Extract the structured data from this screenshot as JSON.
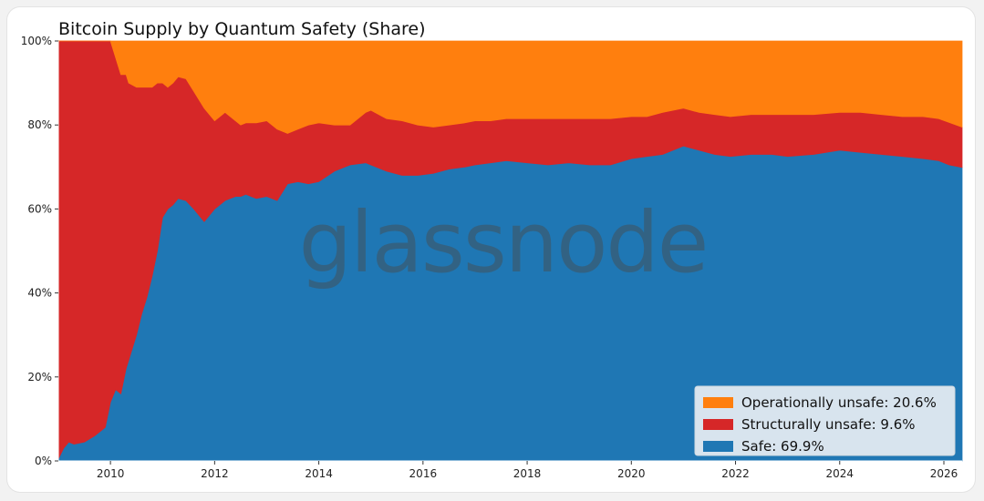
{
  "chart_data": {
    "type": "area",
    "stacked": true,
    "title": "Bitcoin Supply by Quantum Safety (Share)",
    "xlabel": "",
    "ylabel": "",
    "xlim": [
      2009.0,
      2026.35
    ],
    "ylim": [
      0,
      100
    ],
    "x_ticks": [
      2010,
      2012,
      2014,
      2016,
      2018,
      2020,
      2022,
      2024,
      2026
    ],
    "y_ticks": [
      0,
      20,
      40,
      60,
      80,
      100
    ],
    "y_tick_labels": [
      "0%",
      "20%",
      "40%",
      "60%",
      "80%",
      "100%"
    ],
    "grid": false,
    "legend_position": "bottom-right",
    "watermark": "glassnode",
    "x": [
      2009.0,
      2009.1,
      2009.2,
      2009.3,
      2009.5,
      2009.7,
      2009.9,
      2010.0,
      2010.1,
      2010.2,
      2010.3,
      2010.35,
      2010.5,
      2010.6,
      2010.7,
      2010.8,
      2010.9,
      2011.0,
      2011.1,
      2011.2,
      2011.3,
      2011.45,
      2011.6,
      2011.8,
      2012.0,
      2012.2,
      2012.4,
      2012.5,
      2012.6,
      2012.7,
      2012.8,
      2013.0,
      2013.2,
      2013.4,
      2013.6,
      2013.8,
      2014.0,
      2014.3,
      2014.6,
      2014.9,
      2015.0,
      2015.3,
      2015.6,
      2015.9,
      2016.2,
      2016.5,
      2016.8,
      2017.0,
      2017.3,
      2017.6,
      2018.0,
      2018.4,
      2018.8,
      2019.2,
      2019.6,
      2020.0,
      2020.3,
      2020.6,
      2021.0,
      2021.3,
      2021.6,
      2021.9,
      2022.3,
      2022.7,
      2023.0,
      2023.5,
      2024.0,
      2024.4,
      2024.8,
      2025.2,
      2025.6,
      2025.9,
      2026.1,
      2026.35
    ],
    "series": [
      {
        "name": "Safe: 69.9%",
        "color": "#1f77b4",
        "values": [
          0.5,
          3,
          4.5,
          4,
          4.5,
          6,
          8,
          14,
          17,
          16,
          22,
          24,
          30,
          35,
          39,
          44,
          50,
          58,
          60,
          61,
          62.5,
          62,
          60,
          57,
          60,
          62,
          63,
          63,
          63.5,
          63,
          62.5,
          63,
          62,
          66,
          66.5,
          66,
          66.5,
          69,
          70.5,
          71,
          70.5,
          69,
          68,
          68,
          68.5,
          69.5,
          70,
          70.5,
          71,
          71.5,
          71,
          70.5,
          71,
          70.5,
          70.5,
          72,
          72.5,
          73,
          75,
          74,
          73,
          72.5,
          73,
          73,
          72.5,
          73,
          74,
          73.5,
          73,
          72.5,
          72,
          71.5,
          70.5,
          69.9
        ]
      },
      {
        "name": "Structurally unsafe: 9.6%",
        "color": "#d62728",
        "values": [
          99.5,
          97,
          95.5,
          96,
          95.5,
          94,
          92,
          86,
          79,
          76,
          70,
          66,
          59,
          54,
          50,
          45,
          40,
          32,
          29,
          29,
          29,
          29,
          28,
          27,
          21,
          21,
          18,
          17,
          17,
          17.5,
          18,
          18,
          17,
          12,
          12.5,
          14,
          14,
          11,
          9.5,
          12,
          13,
          12.5,
          13,
          12,
          11,
          10.5,
          10.5,
          10.5,
          10,
          10,
          10.5,
          11,
          10.5,
          11,
          11,
          10,
          9.5,
          10,
          9,
          9,
          9.5,
          9.5,
          9.5,
          9.5,
          10,
          9.5,
          9,
          9.5,
          9.5,
          9.5,
          10,
          10,
          10.1,
          9.6
        ]
      },
      {
        "name": "Operationally unsafe: 20.6%",
        "color": "#ff7f0e",
        "values": [
          0,
          0,
          0,
          0,
          0,
          0,
          0,
          0,
          4,
          8,
          8,
          10,
          11,
          11,
          11,
          11,
          10,
          10,
          11,
          10,
          8.5,
          9,
          12,
          16,
          19,
          17,
          19,
          20,
          19.5,
          19.5,
          19.5,
          19,
          21,
          22,
          21,
          20,
          19.5,
          20,
          20,
          17,
          16.5,
          18.5,
          19,
          20,
          20.5,
          20,
          19.5,
          19,
          19,
          18.5,
          18.5,
          18.5,
          18.5,
          18.5,
          18.5,
          18,
          18,
          17,
          16,
          17,
          17.5,
          18,
          17.5,
          17.5,
          17.5,
          17.5,
          17,
          17,
          17.5,
          18,
          18,
          18.5,
          19.4,
          20.6
        ]
      }
    ]
  }
}
